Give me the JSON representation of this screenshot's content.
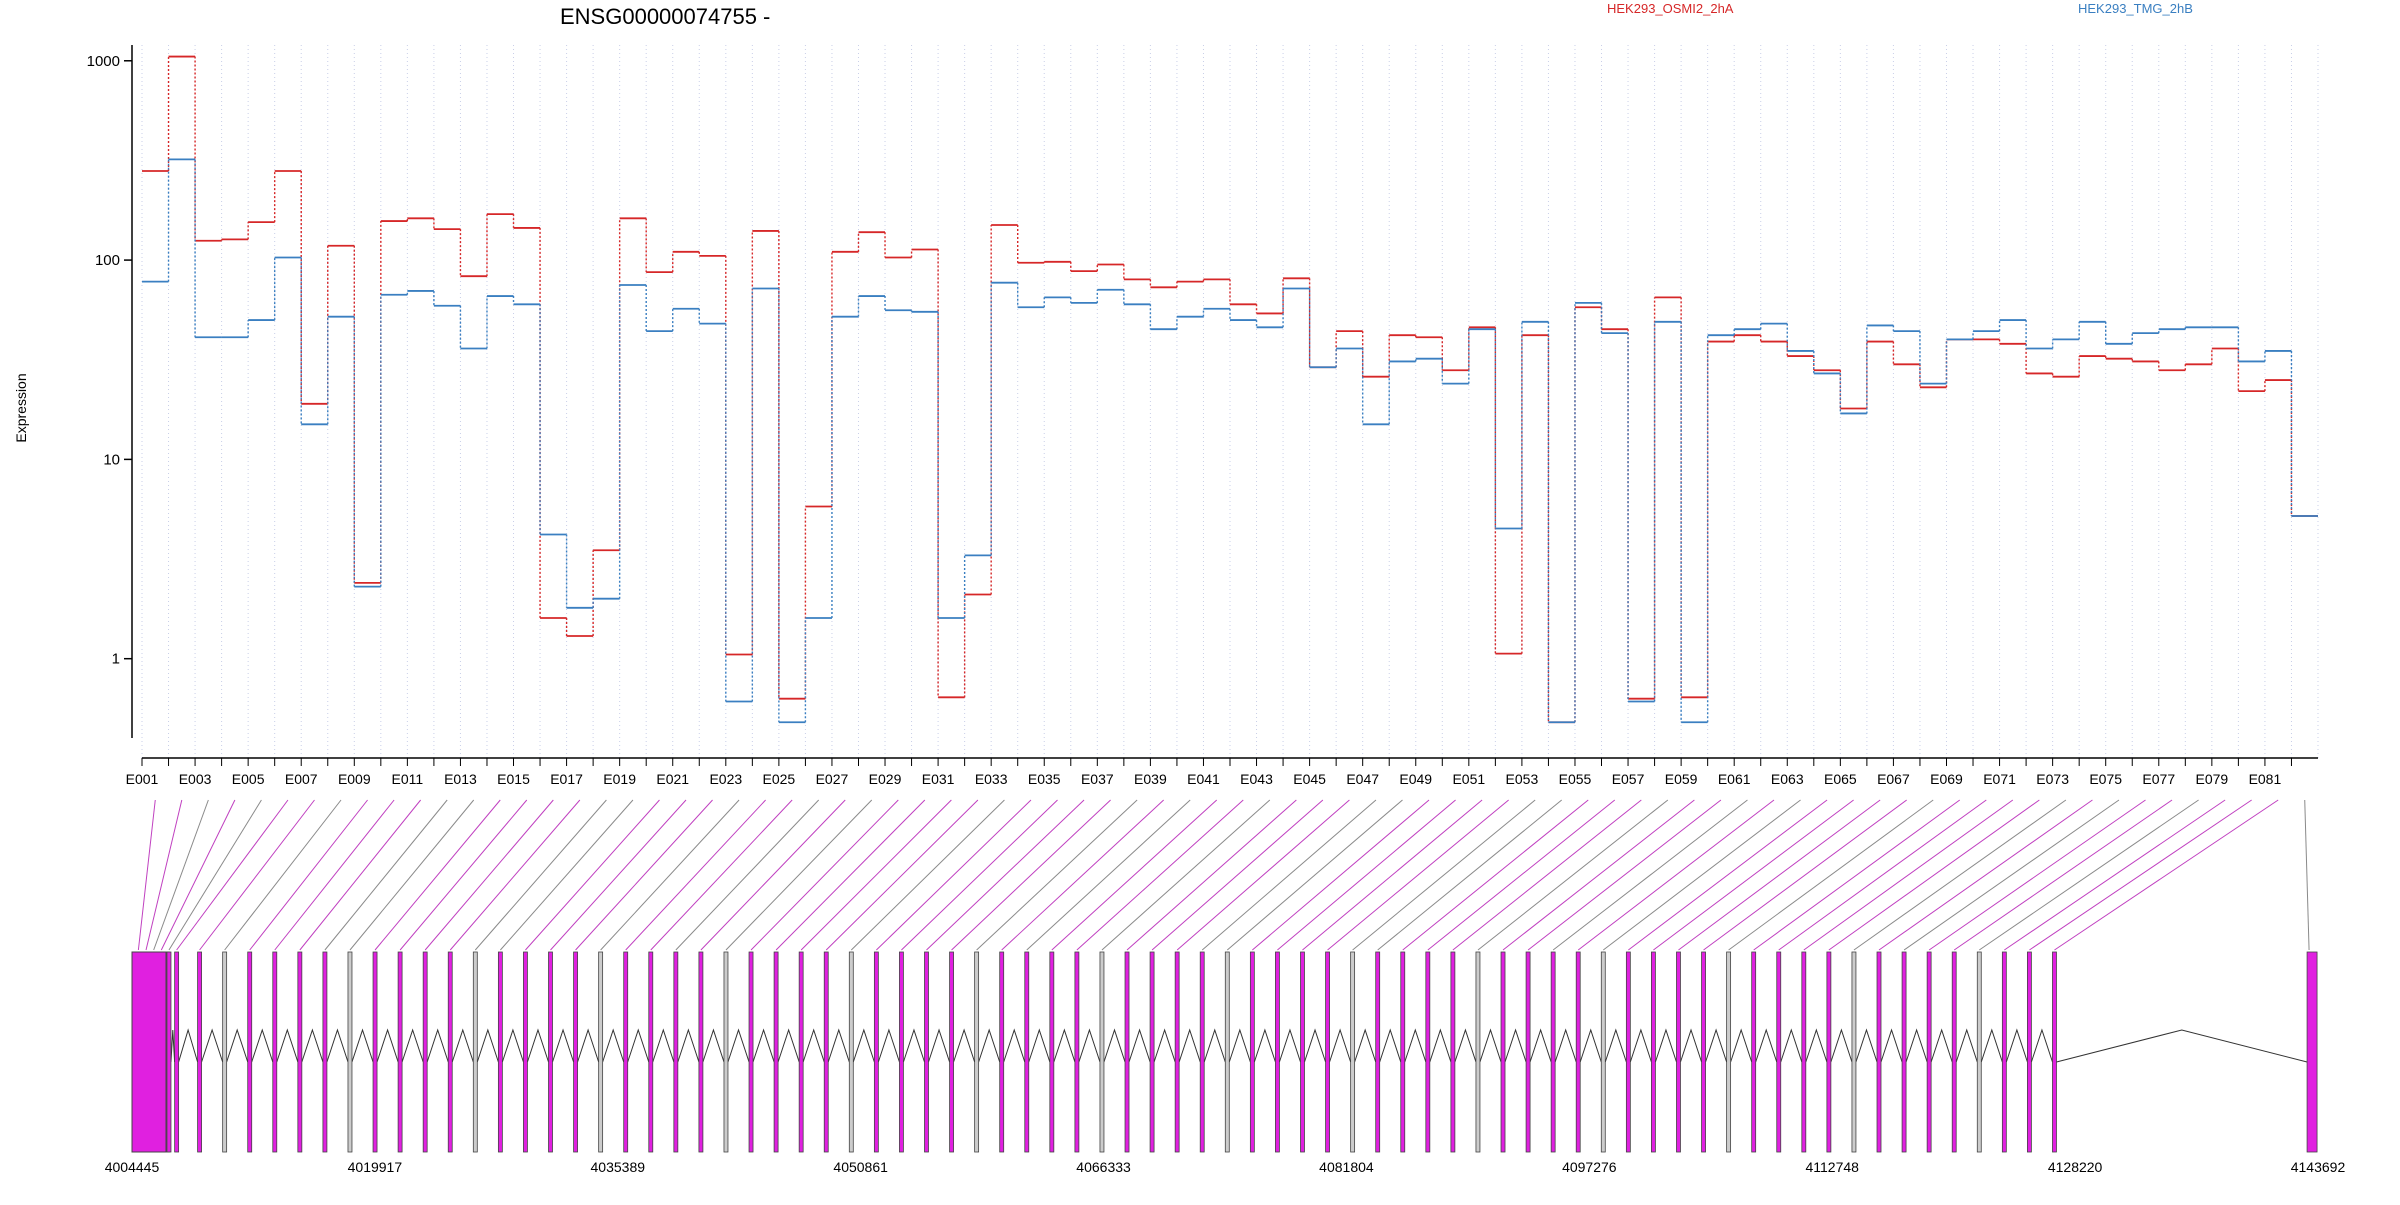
{
  "chart_data": {
    "type": "line",
    "title": "ENSG00000074755 -",
    "xlabel": "",
    "ylabel": "Expression",
    "y_scale": "log",
    "ylim": [
      0.4,
      1200
    ],
    "y_ticks": [
      1,
      10,
      100,
      1000
    ],
    "y_tick_labels": [
      "1",
      "10",
      "100",
      "1000"
    ],
    "grid": "vertical dotted lines per exon",
    "legend_placement": "top",
    "categories": [
      "E001",
      "E002",
      "E003",
      "E004",
      "E005",
      "E006",
      "E007",
      "E008",
      "E009",
      "E010",
      "E011",
      "E012",
      "E013",
      "E014",
      "E015",
      "E016",
      "E017",
      "E018",
      "E019",
      "E020",
      "E021",
      "E022",
      "E023",
      "E024",
      "E025",
      "E026",
      "E027",
      "E028",
      "E029",
      "E030",
      "E031",
      "E032",
      "E033",
      "E034",
      "E035",
      "E036",
      "E037",
      "E038",
      "E039",
      "E040",
      "E041",
      "E042",
      "E043",
      "E044",
      "E045",
      "E046",
      "E047",
      "E048",
      "E049",
      "E050",
      "E051",
      "E052",
      "E053",
      "E054",
      "E055",
      "E056",
      "E057",
      "E058",
      "E059",
      "E060",
      "E061",
      "E062",
      "E063",
      "E064",
      "E065",
      "E066",
      "E067",
      "E068",
      "E069",
      "E070",
      "E071",
      "E072",
      "E073",
      "E074",
      "E075",
      "E076",
      "E077",
      "E078",
      "E079",
      "E080",
      "E081",
      "E082"
    ],
    "tick_labels_shown": [
      "E001",
      "E003",
      "E005",
      "E007",
      "E009",
      "E011",
      "E013",
      "E015",
      "E017",
      "E019",
      "E021",
      "E023",
      "E025",
      "E027",
      "E029",
      "E031",
      "E033",
      "E035",
      "E037",
      "E039",
      "E041",
      "E043",
      "E045",
      "E047",
      "E049",
      "E051",
      "E053",
      "E055",
      "E057",
      "E059",
      "E061",
      "E063",
      "E065",
      "E067",
      "E069",
      "E071",
      "E073",
      "E075",
      "E077",
      "E079",
      "E081"
    ],
    "series": [
      {
        "name": "HEK293_OSMI2_2hA",
        "color": "#d62728",
        "values": [
          280,
          1050,
          125,
          127,
          155,
          280,
          19,
          118,
          2.4,
          157,
          162,
          143,
          83,
          170,
          145,
          1.6,
          1.3,
          3.5,
          162,
          87,
          110,
          105,
          1.05,
          140,
          0.63,
          5.8,
          110,
          138,
          103,
          113,
          0.64,
          2.1,
          150,
          97,
          98,
          88,
          95,
          80,
          73,
          78,
          80,
          60,
          54,
          81,
          29,
          44,
          26,
          42,
          41,
          28,
          46,
          1.06,
          42,
          0.48,
          58,
          45,
          0.63,
          65,
          0.64,
          39,
          42,
          39,
          33,
          28,
          18,
          39,
          30,
          23,
          40,
          40,
          38,
          27,
          26,
          33,
          32,
          31,
          28,
          30,
          36,
          22,
          25,
          5.2
        ]
      },
      {
        "name": "HEK293_TMG_2hB",
        "color": "#3a7fc1",
        "values": [
          78,
          320,
          41,
          41,
          50,
          103,
          15,
          52,
          2.3,
          67,
          70,
          59,
          36,
          66,
          60,
          4.2,
          1.8,
          2.0,
          75,
          44,
          57,
          48,
          0.61,
          72,
          0.48,
          1.6,
          52,
          66,
          56,
          55,
          1.6,
          3.3,
          77,
          58,
          65,
          61,
          71,
          60,
          45,
          52,
          57,
          50,
          46,
          72,
          29,
          36,
          15,
          31,
          32,
          24,
          45,
          4.5,
          49,
          0.48,
          61,
          43,
          0.61,
          49,
          0.48,
          42,
          45,
          48,
          35,
          27,
          17,
          47,
          44,
          24,
          40,
          44,
          50,
          36,
          40,
          49,
          38,
          43,
          45,
          46,
          46,
          31,
          35,
          5.2
        ]
      }
    ],
    "genomic_ticks": [
      "4004445",
      "4019917",
      "4035389",
      "4050861",
      "4066333",
      "4081804",
      "4097276",
      "4112748",
      "4128220",
      "4143692"
    ]
  },
  "legend": {
    "series1": "HEK293_OSMI2_2hA",
    "series2": "HEK293_TMG_2hB"
  }
}
